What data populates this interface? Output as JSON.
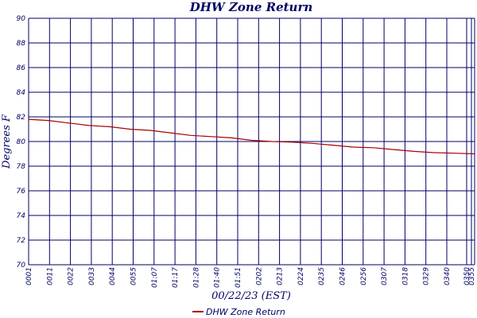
{
  "chart_data": {
    "type": "line",
    "title": "DHW Zone Return",
    "xlabel": "00/22/23 (EST)",
    "ylabel": "Degrees F",
    "ylim": [
      70,
      90
    ],
    "y_ticks": [
      "70",
      "72",
      "74",
      "76",
      "78",
      "80",
      "82",
      "84",
      "86",
      "88",
      "90"
    ],
    "x_tick_labels": [
      "0001",
      "0011",
      "0022",
      "0033",
      "0044",
      "0055",
      "01:07",
      "01:17",
      "01:28",
      "01:40",
      "01:51",
      "0202",
      "0213",
      "0224",
      "0235",
      "0246",
      "0256",
      "0307",
      "0318",
      "0329",
      "0340",
      "0350",
      "0355"
    ],
    "grid": true,
    "legend": "bottom-center",
    "series": [
      {
        "name": "DHW Zone Return",
        "color": "#aa0000",
        "values": [
          81.8,
          81.7,
          81.5,
          81.3,
          81.2,
          81.0,
          80.9,
          80.7,
          80.5,
          80.4,
          80.3,
          80.1,
          80.0,
          79.95,
          79.85,
          79.7,
          79.55,
          79.5,
          79.35,
          79.2,
          79.1,
          79.05,
          79.0
        ]
      }
    ]
  }
}
